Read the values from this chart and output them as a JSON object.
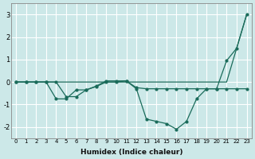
{
  "xlabel": "Humidex (Indice chaleur)",
  "x": [
    0,
    1,
    2,
    3,
    4,
    5,
    6,
    7,
    8,
    9,
    10,
    11,
    12,
    13,
    14,
    15,
    16,
    17,
    18,
    19,
    20,
    21,
    22,
    23
  ],
  "line1_y": [
    0.0,
    0.0,
    0.0,
    0.0,
    0.0,
    0.0,
    0.0,
    0.0,
    0.0,
    0.0,
    0.0,
    0.0,
    0.0,
    0.0,
    0.0,
    0.0,
    0.0,
    0.0,
    0.0,
    0.0,
    0.0,
    0.0,
    1.5,
    3.0
  ],
  "line2_y": [
    0.0,
    0.0,
    0.0,
    0.0,
    -0.75,
    -0.75,
    -0.35,
    -0.35,
    -0.2,
    0.0,
    0.0,
    0.05,
    -0.3,
    -1.65,
    -1.75,
    -1.85,
    -2.1,
    -1.75,
    -0.75,
    -0.3,
    -0.3,
    0.95,
    1.5,
    3.0
  ],
  "line3_y": [
    0.0,
    0.0,
    0.0,
    0.0,
    0.0,
    -0.65,
    -0.65,
    -0.35,
    -0.18,
    0.05,
    0.05,
    0.05,
    -0.25,
    -0.3,
    -0.3,
    -0.3,
    -0.3,
    -0.3,
    -0.3,
    -0.3,
    -0.3,
    -0.3,
    -0.3,
    -0.3
  ],
  "bg_color": "#cce8e8",
  "line_color": "#1a6b5a",
  "grid_color": "#ffffff",
  "ylim": [
    -2.5,
    3.5
  ],
  "xlim": [
    -0.5,
    23.5
  ],
  "yticks": [
    -2,
    -1,
    0,
    1,
    2,
    3
  ],
  "xticks": [
    0,
    1,
    2,
    3,
    4,
    5,
    6,
    7,
    8,
    9,
    10,
    11,
    12,
    13,
    14,
    15,
    16,
    17,
    18,
    19,
    20,
    21,
    22,
    23
  ]
}
